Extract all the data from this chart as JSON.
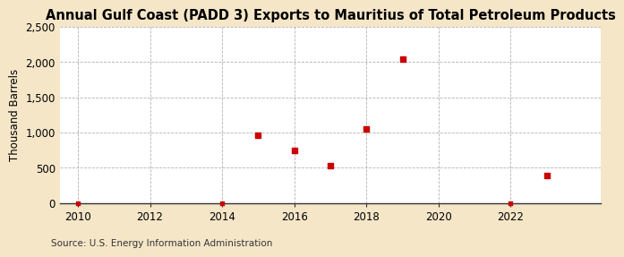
{
  "title": "Annual Gulf Coast (PADD 3) Exports to Mauritius of Total Petroleum Products",
  "ylabel": "Thousand Barrels",
  "source": "Source: U.S. Energy Information Administration",
  "figure_bg_color": "#f5e6c8",
  "plot_bg_color": "#ffffff",
  "data_points": {
    "years": [
      2010,
      2014,
      2015,
      2016,
      2017,
      2018,
      2019,
      2022,
      2023
    ],
    "values": [
      0,
      0,
      960,
      750,
      530,
      1050,
      2040,
      0,
      390
    ]
  },
  "marker_color": "#cc0000",
  "marker_size": 5,
  "xlim": [
    2009.5,
    2024.5
  ],
  "ylim": [
    0,
    2500
  ],
  "yticks": [
    0,
    500,
    1000,
    1500,
    2000,
    2500
  ],
  "ytick_labels": [
    "0",
    "500",
    "1,000",
    "1,500",
    "2,000",
    "2,500"
  ],
  "xticks": [
    2010,
    2012,
    2014,
    2016,
    2018,
    2020,
    2022
  ],
  "grid_color": "#aaaaaa",
  "grid_style": "--",
  "title_fontsize": 10.5,
  "axis_fontsize": 8.5,
  "source_fontsize": 7.5
}
